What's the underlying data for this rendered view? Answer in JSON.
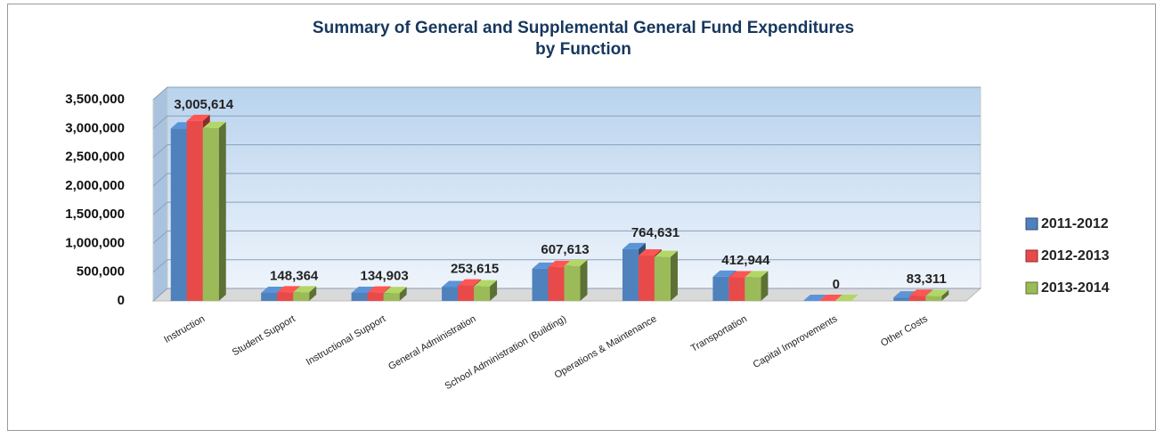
{
  "chart_data": {
    "type": "bar3d",
    "title": "Summary of General and Supplemental General Fund Expenditures by Function",
    "categories": [
      "Instruction",
      "Student Support",
      "Instructional Support",
      "General Administration",
      "School Administration (Building)",
      "Operations & Maintenance",
      "Transportation",
      "Capital Improvements",
      "Other Costs"
    ],
    "series": [
      {
        "name": "2011-2012",
        "color": "#4f81bd",
        "values": [
          3000000,
          140000,
          140000,
          240000,
          560000,
          900000,
          420000,
          0,
          60000
        ]
      },
      {
        "name": "2012-2013",
        "color": "#e84a4a",
        "values": [
          3130000,
          150000,
          145000,
          270000,
          590000,
          790000,
          410000,
          0,
          90000
        ]
      },
      {
        "name": "2013-2014",
        "color": "#9bbb59",
        "values": [
          3005614,
          148364,
          134903,
          253615,
          607613,
          764631,
          412944,
          0,
          83311
        ],
        "value_labels": [
          "3,005,614",
          "148,364",
          "134,903",
          "253,615",
          "607,613",
          "764,631",
          "412,944",
          "0",
          "83,311"
        ]
      }
    ],
    "ylim": [
      0,
      3500000
    ],
    "yticks": [
      {
        "value": 0,
        "label": "0"
      },
      {
        "value": 500000,
        "label": "500,000"
      },
      {
        "value": 1000000,
        "label": "1,000,000"
      },
      {
        "value": 1500000,
        "label": "1,500,000"
      },
      {
        "value": 2000000,
        "label": "2,000,000"
      },
      {
        "value": 2500000,
        "label": "2,500,000"
      },
      {
        "value": 3000000,
        "label": "3,000,000"
      },
      {
        "value": 3500000,
        "label": "3,500,000"
      }
    ],
    "grid": true,
    "legend": "right"
  }
}
